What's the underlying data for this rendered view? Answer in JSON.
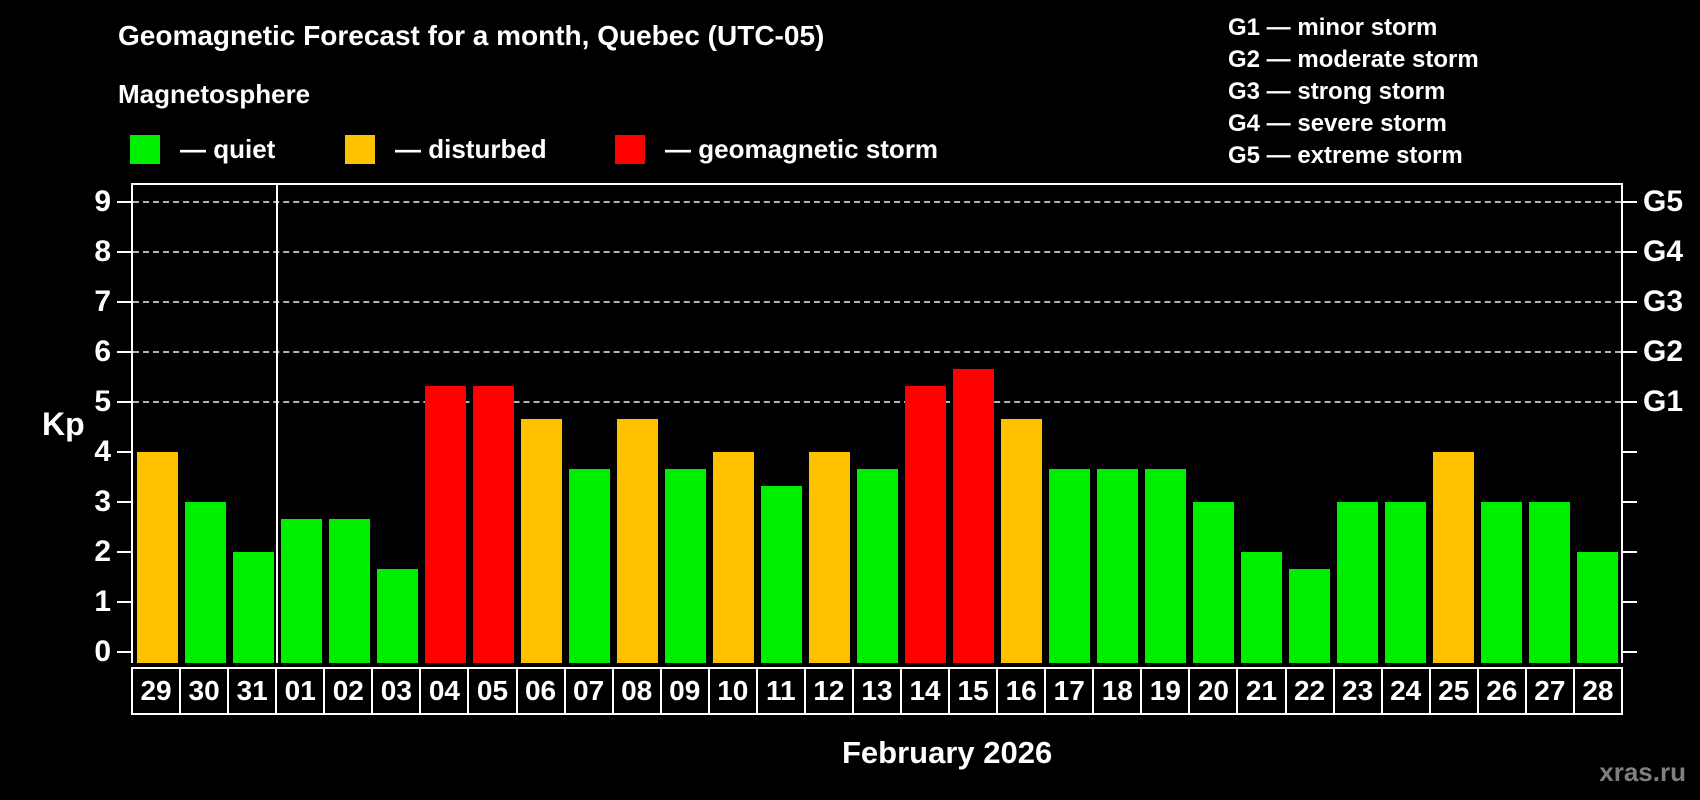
{
  "title": "Geomagnetic Forecast for a month, Quebec (UTC-05)",
  "subtitle": "Magnetosphere",
  "legend": {
    "items": [
      {
        "key": "quiet",
        "label": "— quiet",
        "color": "#00ee00"
      },
      {
        "key": "disturbed",
        "label": "— disturbed",
        "color": "#ffc000"
      },
      {
        "key": "storm",
        "label": "— geomagnetic storm",
        "color": "#ff0000"
      }
    ]
  },
  "g_scale_legend": [
    "G1 — minor storm",
    "G2 — moderate storm",
    "G3 — strong storm",
    "G4 — severe storm",
    "G5 — extreme storm"
  ],
  "y_axis": {
    "label": "Kp",
    "ticks": [
      "0",
      "1",
      "2",
      "3",
      "4",
      "5",
      "6",
      "7",
      "8",
      "9"
    ]
  },
  "right_axis": {
    "labels": [
      "G1",
      "G2",
      "G3",
      "G4",
      "G5"
    ],
    "kp_levels": [
      5,
      6,
      7,
      8,
      9
    ]
  },
  "x_axis": {
    "label": "February 2026"
  },
  "watermark": "xras.ru",
  "chart_data": {
    "type": "bar",
    "title": "Geomagnetic Forecast for a month, Quebec (UTC-05)",
    "subtitle": "Magnetosphere",
    "xlabel": "February 2026",
    "ylabel": "Kp",
    "ylim": [
      0,
      9
    ],
    "grid": "dashed horizontal at Kp 5-9 (G1-G5)",
    "legend_position": "top",
    "categories": [
      "29",
      "30",
      "31",
      "01",
      "02",
      "03",
      "04",
      "05",
      "06",
      "07",
      "08",
      "09",
      "10",
      "11",
      "12",
      "13",
      "14",
      "15",
      "16",
      "17",
      "18",
      "19",
      "20",
      "21",
      "22",
      "23",
      "24",
      "25",
      "26",
      "27",
      "28"
    ],
    "values": [
      4,
      3,
      2,
      2.67,
      2.67,
      1.67,
      5.33,
      5.33,
      4.67,
      3.67,
      4.67,
      3.67,
      4,
      3.33,
      4,
      3.67,
      5.33,
      5.67,
      4.67,
      3.67,
      3.67,
      3.67,
      3,
      2,
      1.67,
      3,
      3,
      4,
      3,
      3,
      2
    ],
    "statuses": [
      "disturbed",
      "quiet",
      "quiet",
      "quiet",
      "quiet",
      "quiet",
      "storm",
      "storm",
      "disturbed",
      "quiet",
      "disturbed",
      "quiet",
      "disturbed",
      "quiet",
      "disturbed",
      "quiet",
      "storm",
      "storm",
      "disturbed",
      "quiet",
      "quiet",
      "quiet",
      "quiet",
      "quiet",
      "quiet",
      "quiet",
      "quiet",
      "disturbed",
      "quiet",
      "quiet",
      "quiet"
    ],
    "status_colors": {
      "quiet": "#00ee00",
      "disturbed": "#ffc000",
      "storm": "#ff0000"
    },
    "gridlines_at": [
      5,
      6,
      7,
      8,
      9
    ],
    "month_separator_after_index": 2
  }
}
